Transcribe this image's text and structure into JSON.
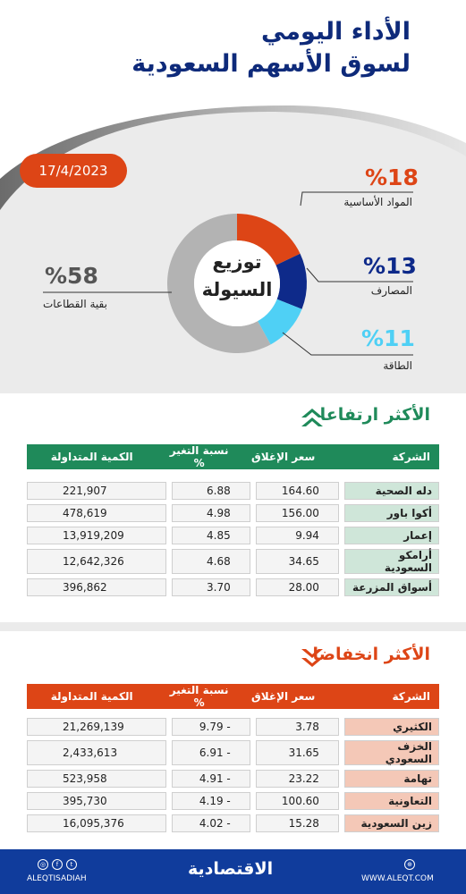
{
  "header": {
    "title_line1": "الأداء اليومي",
    "title_line2": "لسوق الأسهم السعودية",
    "date": "17/4/2023"
  },
  "donut": {
    "center_line1": "توزيع",
    "center_line2": "السيولة",
    "segments": [
      {
        "name": "المواد الأساسية",
        "pct_label": "%18",
        "value": 18,
        "color": "#dd4516"
      },
      {
        "name": "المصارف",
        "pct_label": "%13",
        "value": 13,
        "color": "#0e2a8a"
      },
      {
        "name": "الطاقة",
        "pct_label": "%11",
        "value": 11,
        "color": "#4fd0f5"
      },
      {
        "name": "بقية القطاعات",
        "pct_label": "%58",
        "value": 58,
        "color": "#b3b3b3"
      }
    ]
  },
  "gainers": {
    "title": "الأكثر ارتفاعا",
    "header_color": "#1f8a5a",
    "name_cell_color": "#cfe6d9",
    "headers": {
      "company": "الشركة",
      "close": "سعر الإغلاق",
      "change": "نسبة التغير %",
      "volume": "الكمية المتداولة"
    },
    "rows": [
      {
        "company": "دله الصحية",
        "close": "164.60",
        "change": "6.88",
        "volume": "221,907"
      },
      {
        "company": "أكوا باور",
        "close": "156.00",
        "change": "4.98",
        "volume": "478,619"
      },
      {
        "company": "إعمار",
        "close": "9.94",
        "change": "4.85",
        "volume": "13,919,209"
      },
      {
        "company": "أرامكو السعودية",
        "close": "34.65",
        "change": "4.68",
        "volume": "12,642,326"
      },
      {
        "company": "أسواق المزرعة",
        "close": "28.00",
        "change": "3.70",
        "volume": "396,862"
      }
    ]
  },
  "losers": {
    "title": "الأكثر انخفاضا",
    "header_color": "#dd4516",
    "name_cell_color": "#f4c8b7",
    "headers": {
      "company": "الشركة",
      "close": "سعر الإغلاق",
      "change": "نسبة التغير %",
      "volume": "الكمية المتداولة"
    },
    "rows": [
      {
        "company": "الكثيري",
        "close": "3.78",
        "change": "9.79 -",
        "volume": "21,269,139"
      },
      {
        "company": "الخزف السعودي",
        "close": "31.65",
        "change": "6.91 -",
        "volume": "2,433,613"
      },
      {
        "company": "تهامة",
        "close": "23.22",
        "change": "4.91 -",
        "volume": "523,958"
      },
      {
        "company": "التعاونية",
        "close": "100.60",
        "change": "4.19 -",
        "volume": "395,730"
      },
      {
        "company": "زين السعودية",
        "close": "15.28",
        "change": "4.02 -",
        "volume": "16,095,376"
      }
    ]
  },
  "footer": {
    "social_handle": "ALEQTISADIAH",
    "logo": "الاقتصادية",
    "website": "WWW.ALEQT.COM",
    "icons": [
      "instagram-icon",
      "facebook-icon",
      "twitter-icon",
      "globe-icon"
    ]
  }
}
